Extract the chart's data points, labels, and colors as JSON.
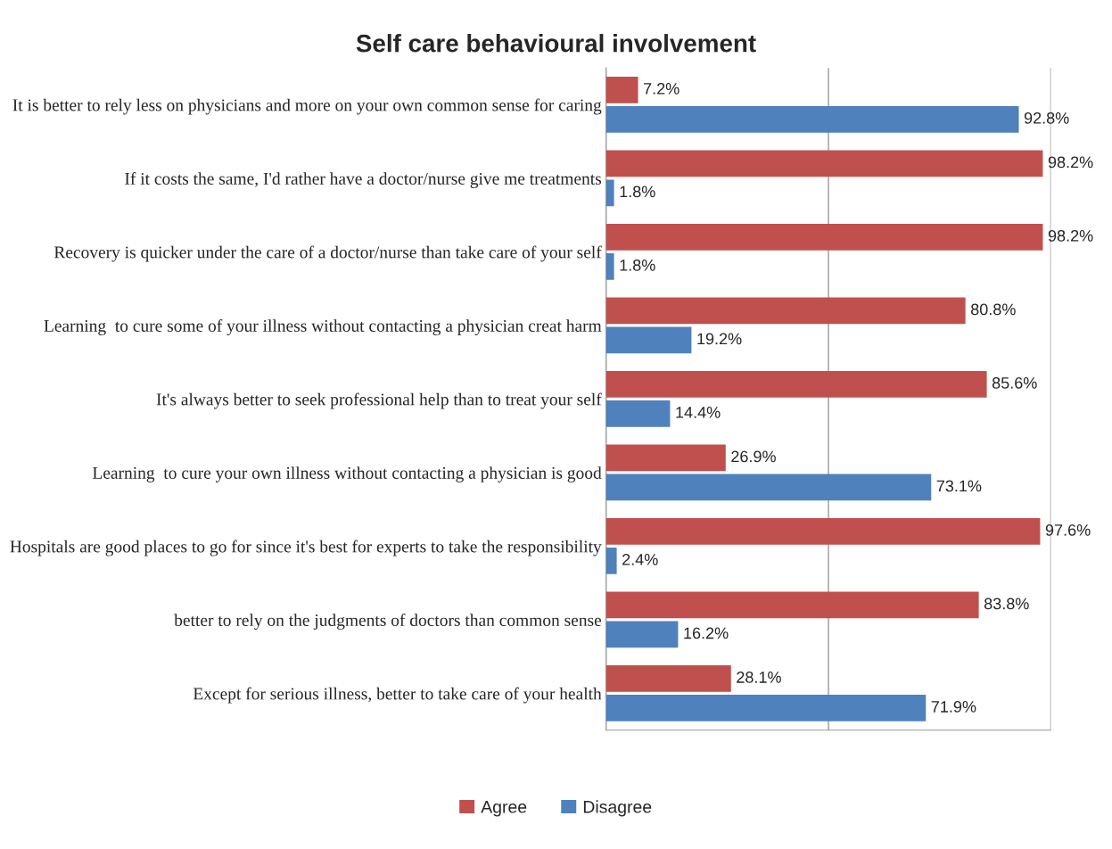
{
  "chart_data": {
    "type": "bar",
    "orientation": "horizontal",
    "title": "Self care behavioural involvement",
    "categories": [
      "It is better to rely less on physicians and more on your own common sense for caring",
      "If it costs the same, I'd rather have a doctor/nurse give me treatments",
      "Recovery is quicker under the care of a doctor/nurse than take care of your self",
      "Learning  to cure some of your illness without contacting a physician creat harm",
      "It's always better to seek professional help than to treat your self",
      "Learning  to cure your own illness without contacting a physician is good",
      "Hospitals are good places to go for since it's best for experts to take the responsibility",
      "better to rely on the judgments of doctors than common sense",
      "Except for serious illness, better to take care of your health"
    ],
    "series": [
      {
        "name": "Agree",
        "color": "#c0504d",
        "values": [
          7.2,
          98.2,
          98.2,
          80.8,
          85.6,
          26.9,
          97.6,
          83.8,
          28.1
        ],
        "value_labels": [
          "7.2%",
          "98.2%",
          "98.2%",
          "80.8%",
          "85.6%",
          "26.9%",
          "97.6%",
          "83.8%",
          "28.1%"
        ]
      },
      {
        "name": "Disagree",
        "color": "#4f81bd",
        "values": [
          92.8,
          1.8,
          1.8,
          19.2,
          14.4,
          73.1,
          2.4,
          16.2,
          71.9
        ],
        "value_labels": [
          "92.8%",
          "1.8%",
          "1.8%",
          "19.2%",
          "14.4%",
          "73.1%",
          "2.4%",
          "16.2%",
          "71.9%"
        ]
      }
    ],
    "xlim": [
      0,
      100
    ],
    "xticks": [
      {
        "value": 0,
        "label": null
      },
      {
        "value": 50,
        "label": null
      },
      {
        "value": 100,
        "label": null
      }
    ],
    "grid": "x",
    "tick_labels": "y",
    "legend": "bottom"
  }
}
